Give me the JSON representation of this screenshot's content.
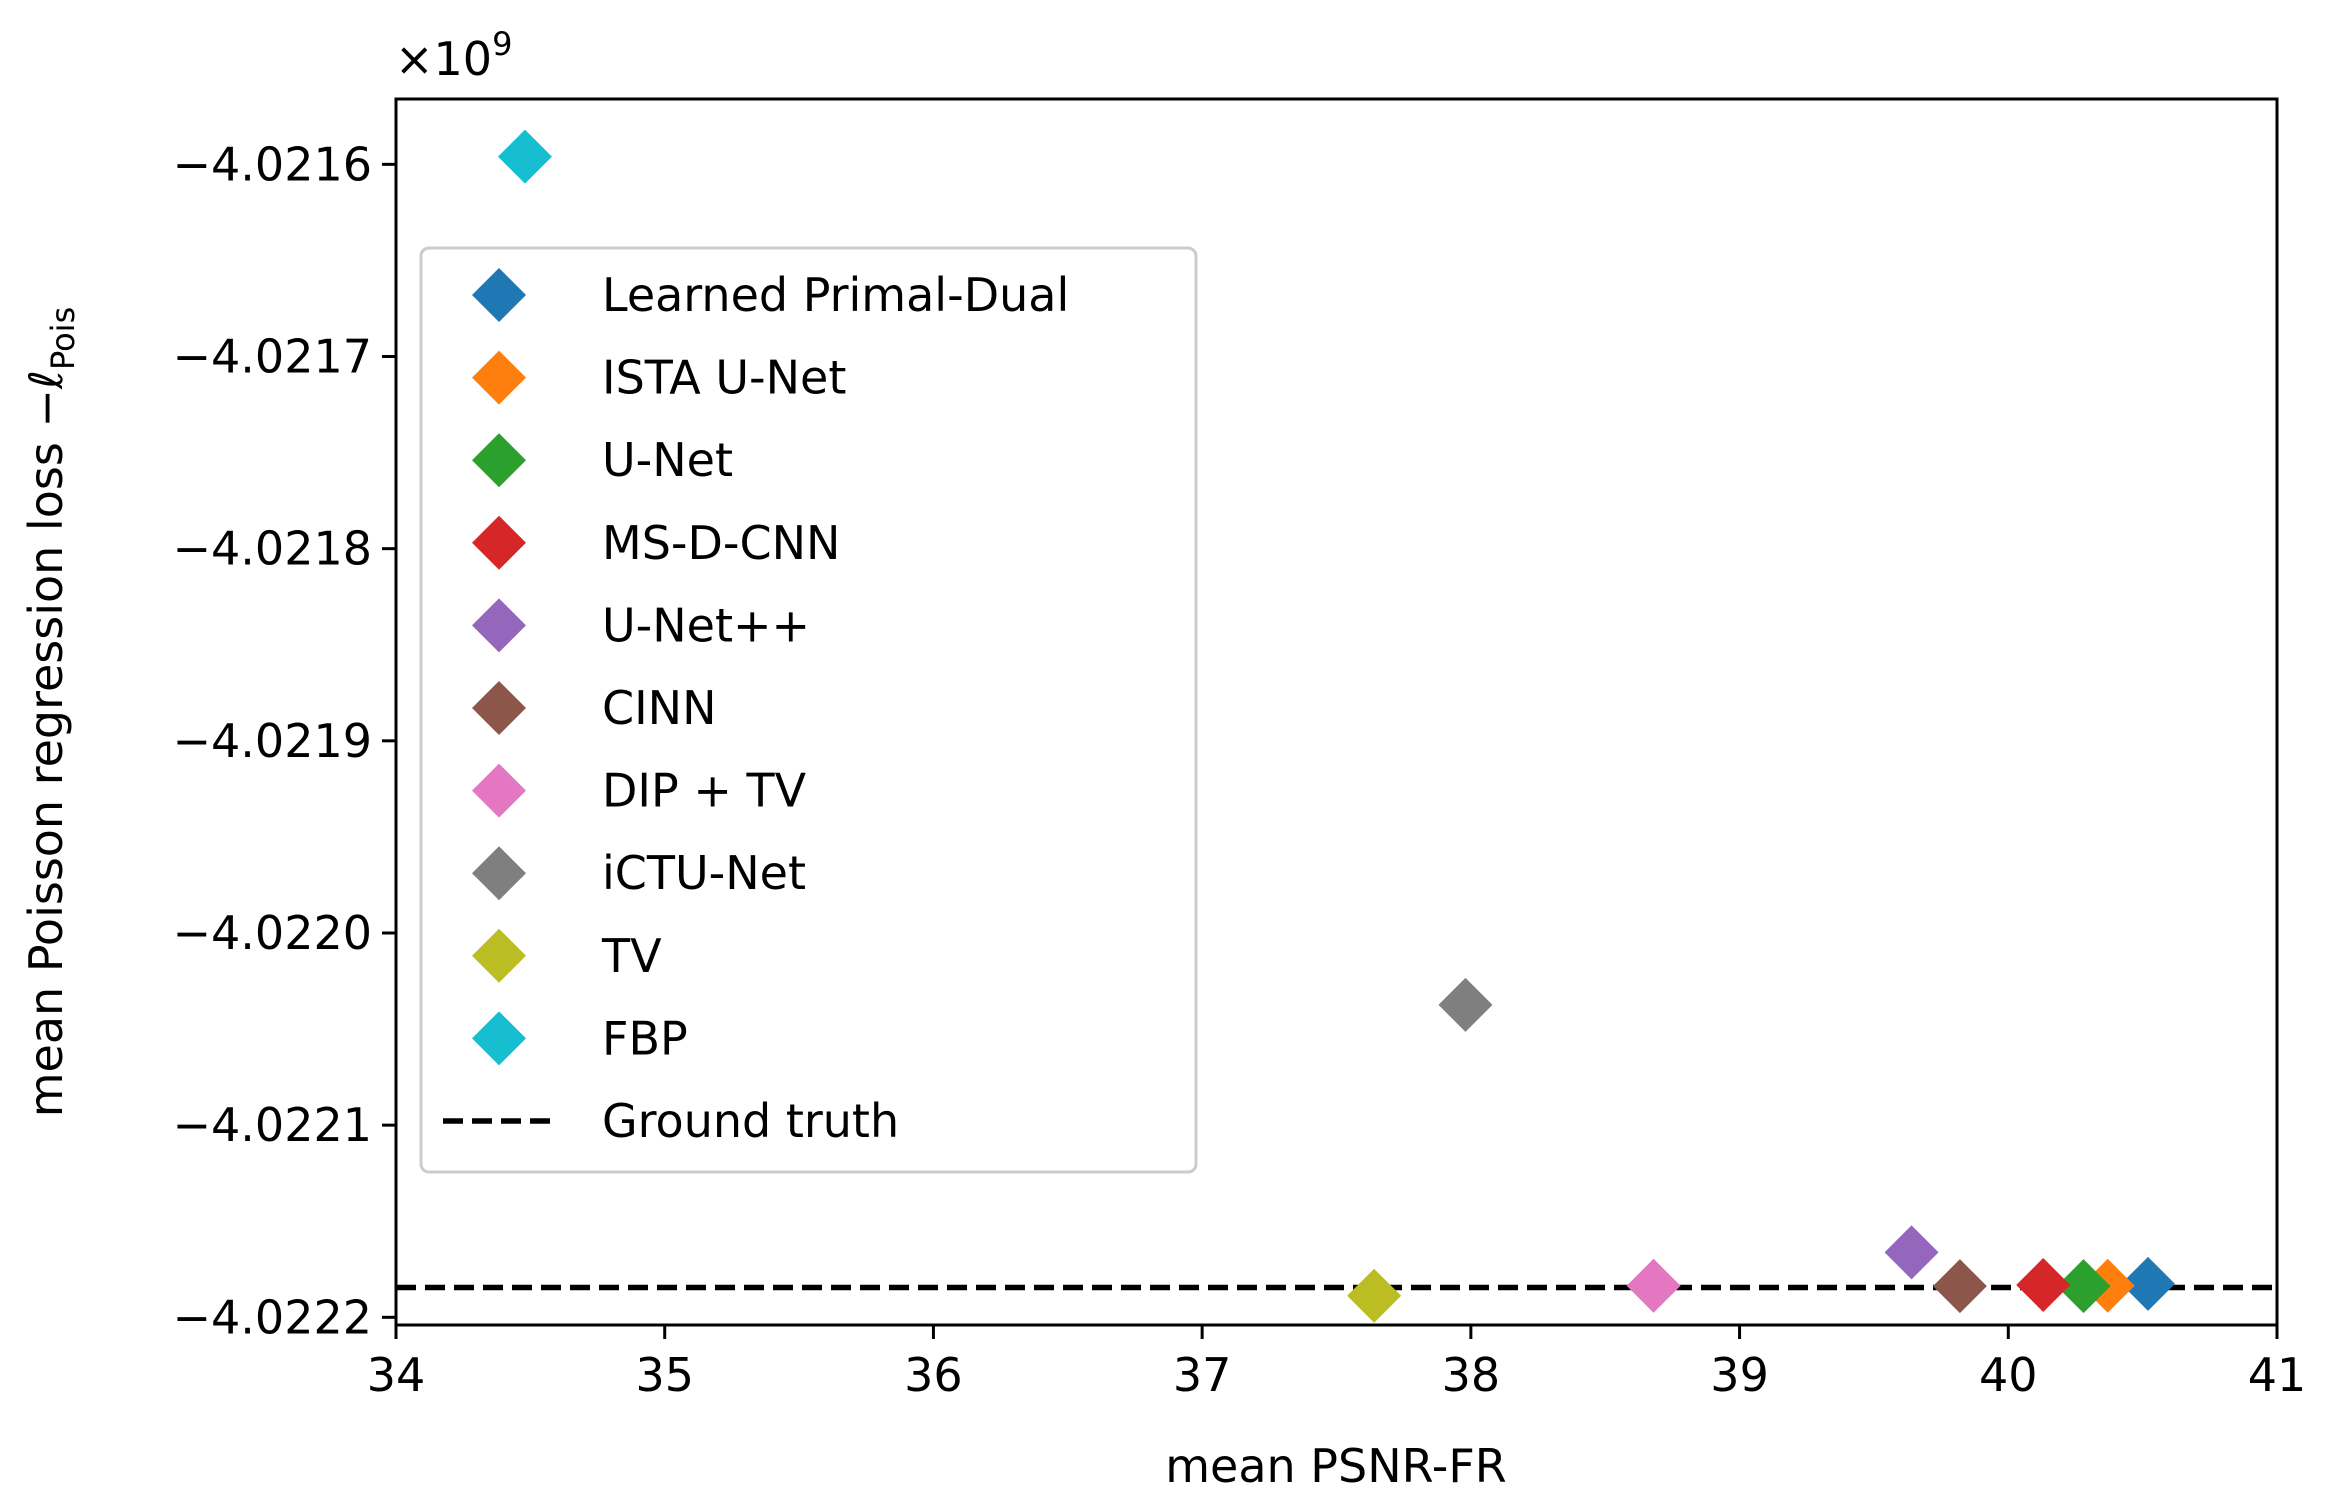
{
  "chart_data": {
    "type": "scatter",
    "xlabel": "mean PSNR-FR",
    "ylabel": "mean Poisson regression loss −ℓ",
    "ylabel_subscript": "Pois",
    "y_offset_label": "×10",
    "y_offset_exponent": "9",
    "xlim": [
      34,
      41
    ],
    "ylim": [
      -4.022204,
      -4.021566
    ],
    "x_ticks": [
      34,
      35,
      36,
      37,
      38,
      39,
      40,
      41
    ],
    "x_tick_labels": [
      "34",
      "35",
      "36",
      "37",
      "38",
      "39",
      "40",
      "41"
    ],
    "y_ticks": [
      -4.0216,
      -4.0217,
      -4.0218,
      -4.0219,
      -4.022,
      -4.0221,
      -4.0222
    ],
    "y_tick_labels": [
      "−4.0216",
      "−4.0217",
      "−4.0218",
      "−4.0219",
      "−4.0220",
      "−4.0221",
      "−4.0222"
    ],
    "grid": false,
    "legend_position": "upper-left",
    "marker": "diamond",
    "series": [
      {
        "name": "Learned Primal-Dual",
        "color": "#1f77b4",
        "x": 40.52,
        "y": -4.0221826
      },
      {
        "name": "ISTA U-Net",
        "color": "#ff7f0e",
        "x": 40.37,
        "y": -4.0221836
      },
      {
        "name": "U-Net",
        "color": "#2ca02c",
        "x": 40.28,
        "y": -4.0221838
      },
      {
        "name": "MS-D-CNN",
        "color": "#d62728",
        "x": 40.13,
        "y": -4.0221832
      },
      {
        "name": "U-Net++",
        "color": "#9467bd",
        "x": 39.64,
        "y": -4.0221662
      },
      {
        "name": "CINN",
        "color": "#8c564b",
        "x": 39.82,
        "y": -4.0221838
      },
      {
        "name": "DIP + TV",
        "color": "#e377c2",
        "x": 38.68,
        "y": -4.0221836
      },
      {
        "name": "iCTU-Net",
        "color": "#7f7f7f",
        "x": 37.98,
        "y": -4.0220374
      },
      {
        "name": "TV",
        "color": "#bcbd22",
        "x": 37.64,
        "y": -4.0221888
      },
      {
        "name": "FBP",
        "color": "#17becf",
        "x": 34.48,
        "y": -4.021596
      }
    ],
    "reference_lines": [
      {
        "name": "Ground truth",
        "color": "#000000",
        "style": "dashed",
        "y": -4.0221845
      }
    ]
  }
}
